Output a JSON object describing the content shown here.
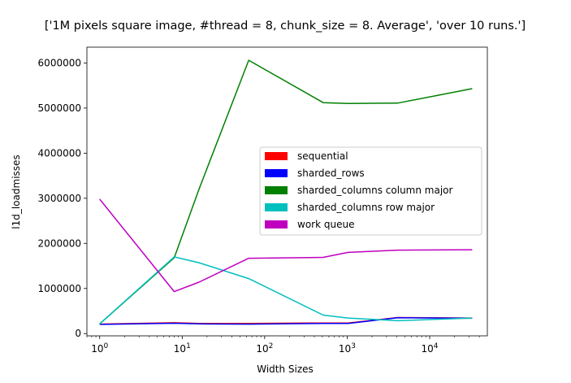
{
  "chart_data": {
    "type": "line",
    "title": "['1M pixels square image, #thread = 8, chunk_size = 8. Average', 'over 10 runs.']",
    "xlabel": "Width Sizes",
    "ylabel": "l1d_loadmisses",
    "xscale": "log",
    "xlim": [
      0.7,
      50000
    ],
    "ylim": [
      -50000,
      6350000
    ],
    "grid": false,
    "legend_position": "center-right",
    "x": [
      1,
      8,
      16,
      64,
      512,
      1024,
      4096,
      32768
    ],
    "x_ticks": [
      1,
      10,
      100,
      1000,
      10000
    ],
    "x_tick_labels": [
      {
        "base": "10",
        "exp": "0"
      },
      {
        "base": "10",
        "exp": "1"
      },
      {
        "base": "10",
        "exp": "2"
      },
      {
        "base": "10",
        "exp": "3"
      },
      {
        "base": "10",
        "exp": "4"
      }
    ],
    "y_ticks": [
      0,
      1000000,
      2000000,
      3000000,
      4000000,
      5000000,
      6000000
    ],
    "y_tick_labels": [
      "0",
      "1000000",
      "2000000",
      "3000000",
      "4000000",
      "5000000",
      "6000000"
    ],
    "series": [
      {
        "name": "sequential",
        "color": "#ff0000",
        "values": [
          210000,
          240000,
          225000,
          225000,
          235000,
          235000,
          355000,
          345000
        ]
      },
      {
        "name": "sharded_rows",
        "color": "#0000ff",
        "values": [
          205000,
          230000,
          215000,
          210000,
          225000,
          225000,
          350000,
          340000
        ]
      },
      {
        "name": "sharded_columns column major",
        "color": "#008000",
        "values": [
          215000,
          1680000,
          3200000,
          6060000,
          5120000,
          5100000,
          5110000,
          5430000
        ]
      },
      {
        "name": "sharded_columns row major",
        "color": "#00bfbf",
        "values": [
          215000,
          1700000,
          1570000,
          1220000,
          410000,
          345000,
          285000,
          345000
        ]
      },
      {
        "name": "work queue",
        "color": "#bf00bf",
        "values": [
          2980000,
          930000,
          1140000,
          1670000,
          1690000,
          1800000,
          1850000,
          1860000
        ]
      }
    ]
  }
}
